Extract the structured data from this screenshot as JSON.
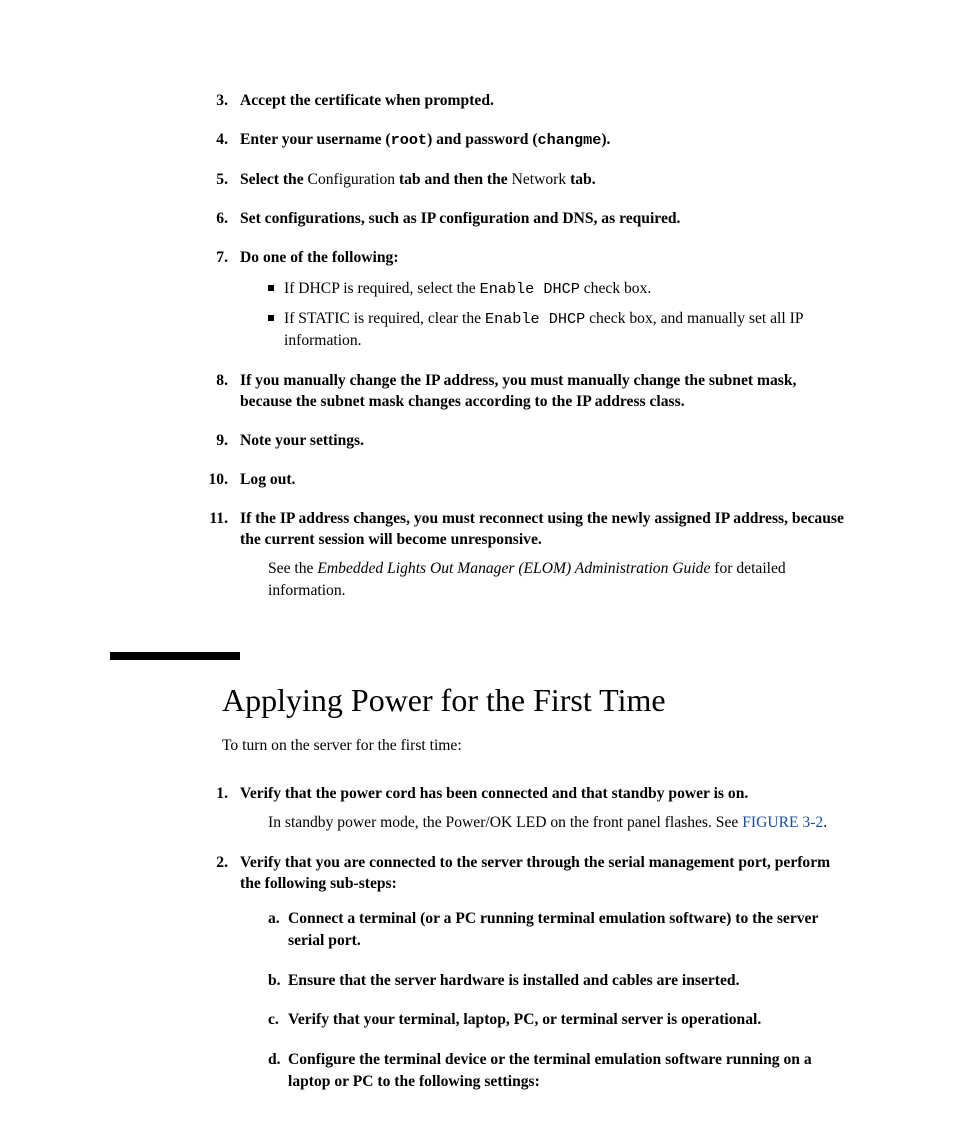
{
  "steps1": {
    "s3": {
      "num": "3.",
      "text": "Accept the certificate when prompted."
    },
    "s4": {
      "num": "4.",
      "t1": "Enter your username (",
      "c1": "root",
      "t2": ") and password (",
      "c2": "changme",
      "t3": ")."
    },
    "s5": {
      "num": "5.",
      "t1": "Select the ",
      "p1": "Configuration",
      "t2": " tab and then the ",
      "p2": "Network",
      "t3": " tab."
    },
    "s6": {
      "num": "6.",
      "text": "Set configurations, such as IP configuration and DNS, as required."
    },
    "s7": {
      "num": "7.",
      "text": "Do one of the following:",
      "b1": {
        "t1": "If DHCP is required, select the ",
        "c1": "Enable DHCP",
        "t2": " check box."
      },
      "b2": {
        "t1": "If STATIC is required, clear the ",
        "c1": "Enable DHCP",
        "t2": " check box, and manually set all IP information."
      }
    },
    "s8": {
      "num": "8.",
      "text": "If you manually change the IP address, you must manually change the subnet mask, because the subnet mask changes according to the IP address class."
    },
    "s9": {
      "num": "9.",
      "text": "Note your settings."
    },
    "s10": {
      "num": "10.",
      "text": "Log out."
    },
    "s11": {
      "num": "11.",
      "text": "If the IP address changes, you must reconnect using the newly assigned IP address, because the current session will become unresponsive.",
      "body": {
        "t1": "See the ",
        "it": "Embedded Lights Out Manager (ELOM) Administration Guide",
        "t2": " for detailed information."
      }
    }
  },
  "section": {
    "heading": "Applying Power for the First Time",
    "intro": "To turn on the server for the first time:"
  },
  "steps2": {
    "s1": {
      "num": "1.",
      "text": "Verify that the power cord has been connected and that standby power is on.",
      "body": {
        "t1": "In standby power mode, the Power/OK LED on the front panel flashes. See ",
        "link": "FIGURE 3-2",
        "t2": "."
      }
    },
    "s2": {
      "num": "2.",
      "text": "Verify that you are connected to the server through the serial management port, perform the following sub-steps:",
      "a": {
        "snum": "a.",
        "text": "Connect a terminal (or a PC running terminal emulation software) to the server serial port."
      },
      "b": {
        "snum": "b.",
        "text": "Ensure that the server hardware is installed and cables are inserted."
      },
      "c": {
        "snum": "c.",
        "text": "Verify that your terminal, laptop, PC, or terminal server is operational."
      },
      "d": {
        "snum": "d.",
        "text": "Configure the terminal device or the terminal emulation software running on a laptop or PC to the following settings:"
      }
    }
  }
}
